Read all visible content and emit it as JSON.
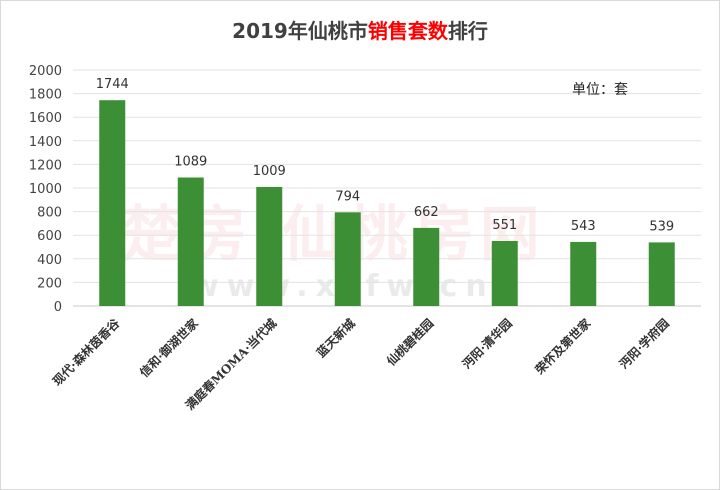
{
  "chart_data": {
    "type": "bar",
    "title_parts": [
      "2019年仙桃市",
      "销售套数",
      "排行"
    ],
    "unit_label": "单位：套",
    "categories": [
      "现代·森林茵香谷",
      "信和·御湖世家",
      "满庭春MOMA·当代城",
      "蓝天新城",
      "仙桃碧桂园",
      "沔阳·清华园",
      "荣怀及第世家",
      "沔阳·学府园"
    ],
    "values": [
      1744,
      1089,
      1009,
      794,
      662,
      551,
      543,
      539
    ],
    "yticks": [
      0,
      200,
      400,
      600,
      800,
      1000,
      1200,
      1400,
      1600,
      1800,
      2000
    ],
    "ylim": [
      0,
      2000
    ],
    "grid": true,
    "bar_color": "#3d8f35",
    "title_highlight_color": "#ff0000"
  },
  "watermark": {
    "brand": "楚房·仙桃房网",
    "url": "www.xtfw.cn"
  }
}
